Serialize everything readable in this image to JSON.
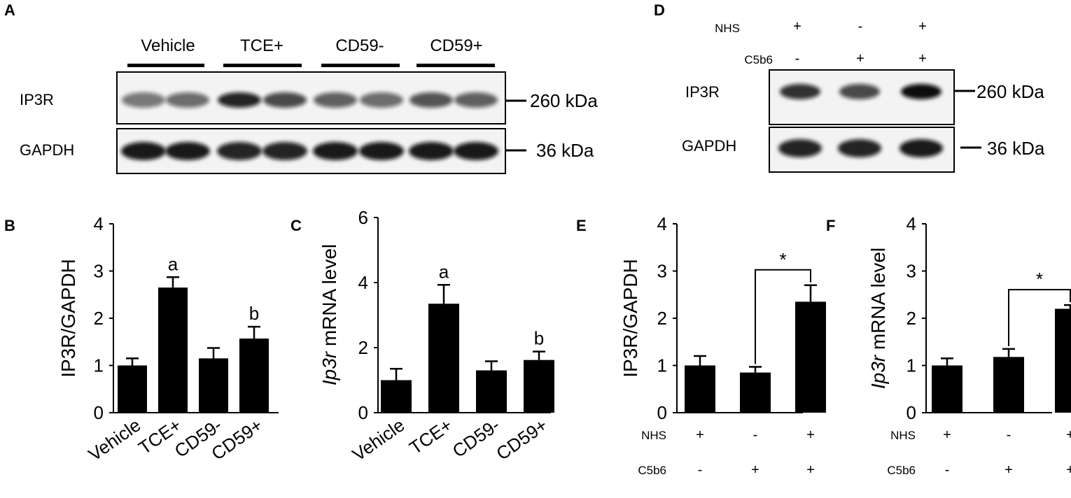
{
  "figure": {
    "panel_letters": {
      "a": "A",
      "b": "B",
      "c": "C",
      "d": "D",
      "e": "E",
      "f": "F"
    }
  },
  "blot_a": {
    "groups": [
      "Vehicle",
      "TCE+",
      "CD59-",
      "CD59+"
    ],
    "rows": [
      {
        "label": "IP3R",
        "kda": "260 kDa",
        "intensity": [
          0.55,
          0.6,
          0.9,
          0.75,
          0.65,
          0.6,
          0.7,
          0.65
        ]
      },
      {
        "label": "GAPDH",
        "kda": "36 kDa",
        "intensity": [
          0.95,
          0.95,
          0.9,
          0.9,
          0.95,
          0.95,
          0.95,
          0.95
        ]
      }
    ]
  },
  "blot_d": {
    "conditions": [
      {
        "label": "NHS",
        "signs": [
          "+",
          "-",
          "+"
        ]
      },
      {
        "label": "C5b6",
        "signs": [
          "-",
          "+",
          "+"
        ]
      }
    ],
    "rows": [
      {
        "label": "IP3R",
        "kda": "260 kDa",
        "intensity": [
          0.85,
          0.75,
          1.0
        ]
      },
      {
        "label": "GAPDH",
        "kda": "36 kDa",
        "intensity": [
          0.9,
          0.9,
          0.95
        ]
      }
    ]
  },
  "chart_data": [
    {
      "panel": "B",
      "type": "bar",
      "categories": [
        "Vehicle",
        "TCE+",
        "CD59-",
        "CD59+"
      ],
      "values": [
        1.0,
        2.65,
        1.15,
        1.57
      ],
      "errors": [
        0.15,
        0.22,
        0.22,
        0.25
      ],
      "annotations": [
        "",
        "a",
        "",
        "b"
      ],
      "ylabel": "IP3R/GAPDH",
      "ylim": [
        0,
        4
      ],
      "yticks": [
        0,
        1,
        2,
        3,
        4
      ],
      "color": "#000000"
    },
    {
      "panel": "C",
      "type": "bar",
      "categories": [
        "Vehicle",
        "TCE+",
        "CD59-",
        "CD59+"
      ],
      "values": [
        1.0,
        3.35,
        1.3,
        1.62
      ],
      "errors": [
        0.35,
        0.58,
        0.28,
        0.26
      ],
      "annotations": [
        "",
        "a",
        "",
        "b"
      ],
      "ylabel_italic": "Ip3r",
      "ylabel": " mRNA level",
      "ylim": [
        0,
        6
      ],
      "yticks": [
        0,
        2,
        4,
        6
      ],
      "color": "#000000"
    },
    {
      "panel": "E",
      "type": "bar",
      "values": [
        1.0,
        0.85,
        2.35
      ],
      "errors": [
        0.2,
        0.12,
        0.35
      ],
      "ylabel": "IP3R/GAPDH",
      "ylim": [
        0,
        4
      ],
      "yticks": [
        0,
        1,
        2,
        3,
        4
      ],
      "significance": {
        "from": 1,
        "to": 2,
        "label": "*"
      },
      "conditions": [
        {
          "label": "NHS",
          "signs": [
            "+",
            "-",
            "+"
          ]
        },
        {
          "label": "C5b6",
          "signs": [
            "-",
            "+",
            "+"
          ]
        }
      ],
      "color": "#000000"
    },
    {
      "panel": "F",
      "type": "bar",
      "values": [
        1.0,
        1.18,
        2.2
      ],
      "errors": [
        0.15,
        0.17,
        0.08
      ],
      "ylabel_italic": "Ip3r",
      "ylabel": " mRNA level",
      "ylim": [
        0,
        4
      ],
      "yticks": [
        0,
        1,
        2,
        3,
        4
      ],
      "significance": {
        "from": 1,
        "to": 2,
        "label": "*"
      },
      "conditions": [
        {
          "label": "NHS",
          "signs": [
            "+",
            "-",
            "+"
          ]
        },
        {
          "label": "C5b6",
          "signs": [
            "-",
            "+",
            "+"
          ]
        }
      ],
      "color": "#000000"
    }
  ]
}
